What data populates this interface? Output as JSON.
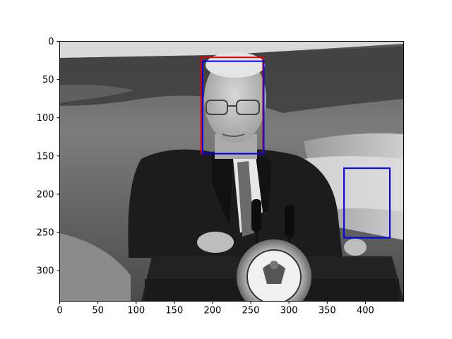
{
  "chart_data": {
    "type": "image",
    "image_kind": "grayscale photograph",
    "xlim": [
      0,
      450
    ],
    "ylim": [
      340,
      0
    ],
    "x_ticks": [
      0,
      50,
      100,
      150,
      200,
      250,
      300,
      350,
      400
    ],
    "y_ticks": [
      0,
      50,
      100,
      150,
      200,
      250,
      300
    ],
    "boxes": [
      {
        "color": "#e00000",
        "x0": 185,
        "y0": 21,
        "x1": 266,
        "y1": 147
      },
      {
        "color": "#0000ee",
        "x0": 187,
        "y0": 26,
        "x1": 267,
        "y1": 147
      },
      {
        "color": "#0000ee",
        "x0": 372,
        "y0": 166,
        "x1": 432,
        "y1": 257
      }
    ],
    "grid": false,
    "legend": "none"
  }
}
